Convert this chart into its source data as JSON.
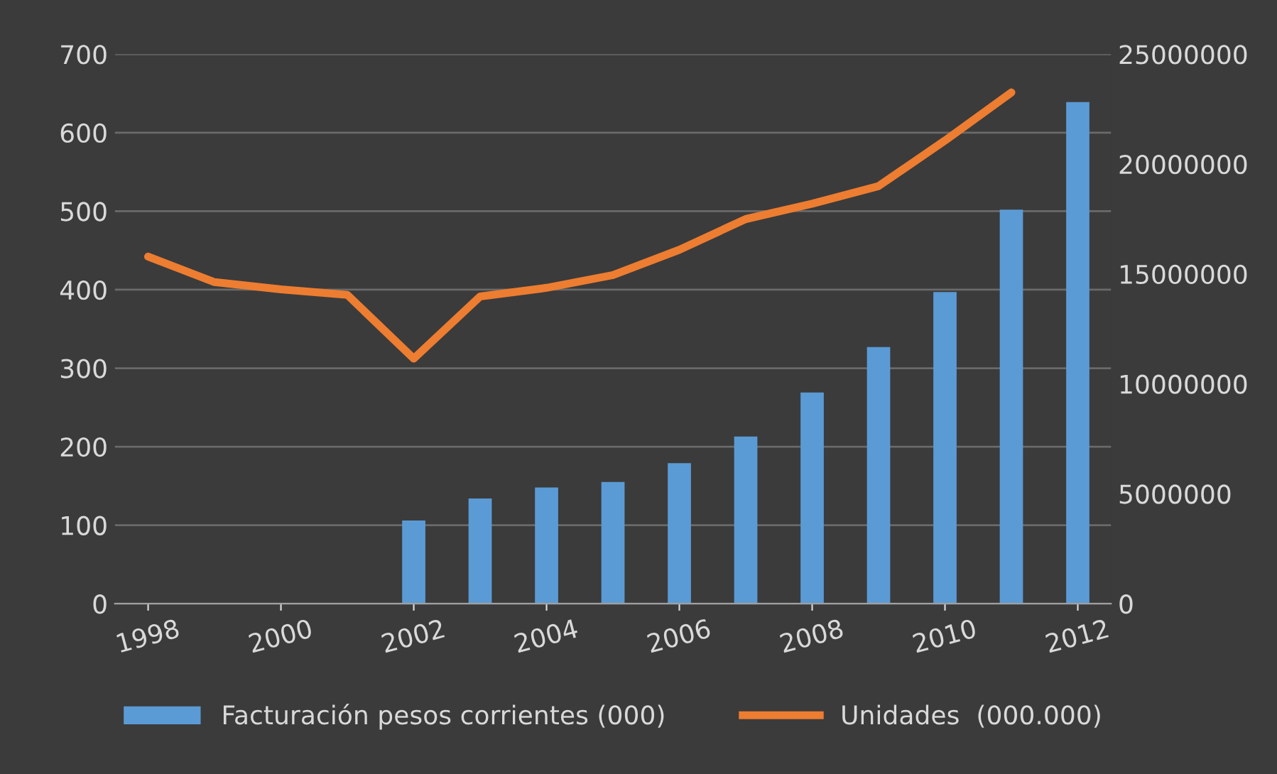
{
  "chart_data": {
    "type": "bar",
    "categories": [
      "1998",
      null,
      "2000",
      null,
      "2002",
      null,
      "2004",
      null,
      "2006",
      null,
      "2008",
      null,
      "2010",
      null,
      "2012"
    ],
    "series": [
      {
        "name": "Facturación pesos corrientes (000)",
        "color": "#5b9bd5",
        "values": [
          null,
          null,
          null,
          null,
          106,
          134,
          148,
          155,
          179,
          213,
          269,
          327,
          397,
          502,
          639
        ]
      },
      {
        "name": "Unidades  (000.000)",
        "type": "line",
        "axis": "y2",
        "color": "#ed7d31",
        "values": [
          15790000,
          14630000,
          14300000,
          14050000,
          11150000,
          13980000,
          14370000,
          14950000,
          16100000,
          17500000,
          18200000,
          19000000,
          21070000,
          23260000,
          null
        ]
      }
    ],
    "ylim": [
      0,
      700
    ],
    "yticks": [
      0,
      100,
      200,
      300,
      400,
      500,
      600,
      700
    ],
    "y2lim": [
      0,
      25000000
    ],
    "y2ticks": [
      0,
      5000000,
      10000000,
      15000000,
      20000000,
      25000000
    ],
    "grid": "y",
    "legend": "bottom",
    "marker": "none",
    "line_style": "solid"
  }
}
